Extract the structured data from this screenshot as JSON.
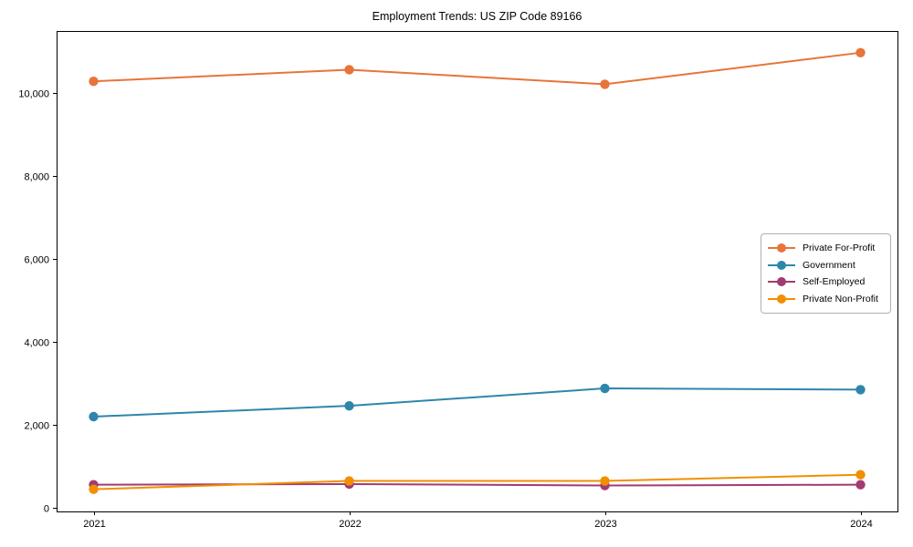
{
  "chart_data": {
    "type": "line",
    "title": "Employment Trends: US ZIP Code 89166",
    "categories": [
      "2021",
      "2022",
      "2023",
      "2024"
    ],
    "series": [
      {
        "name": "Private For-Profit",
        "color": "#E8743B",
        "values": [
          10270,
          10550,
          10200,
          10960
        ]
      },
      {
        "name": "Government",
        "color": "#2E86AB",
        "values": [
          2190,
          2450,
          2870,
          2840
        ]
      },
      {
        "name": "Self-Employed",
        "color": "#A23B72",
        "values": [
          550,
          565,
          530,
          550
        ]
      },
      {
        "name": "Private Non-Profit",
        "color": "#F18F01",
        "values": [
          440,
          640,
          640,
          790
        ]
      }
    ],
    "xlabel": "",
    "ylabel": "",
    "ylim": [
      -95,
      11483
    ],
    "yticks": [
      0,
      2000,
      4000,
      6000,
      8000,
      10000
    ],
    "ytick_labels": [
      "0",
      "2,000",
      "4,000",
      "6,000",
      "8,000",
      "10,000"
    ],
    "grid": false,
    "legend_position": "center right",
    "marker": "circle",
    "axis_color": "#000000",
    "background_color": "#ffffff"
  }
}
